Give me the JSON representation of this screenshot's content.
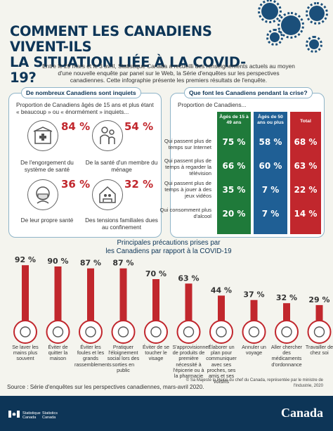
{
  "title_lines": [
    "COMMENT LES CANADIENS VIVENT-ILS",
    "LA SITUATION LIÉE À LA COVID-19?"
  ],
  "intro": "Entre le 29 mars et le 3 avril, Statistique Canada a recueilli des renseignements actuels au moyen d'une nouvelle enquête par panel sur le Web, la Série d'enquêtes sur les perspectives canadiennes. Cette infographie présente les premiers résultats de l'enquête.",
  "colors": {
    "navy": "#0d3557",
    "red": "#c1272d",
    "green": "#1f7a3a",
    "blue": "#1f5f95"
  },
  "left_panel": {
    "tag": "De nombreux Canadiens sont inquiets",
    "intro": "Proportion de Canadiens âgés de 15 ans et plus étant « beaucoup » ou « énormément » inquiets...",
    "stats": [
      {
        "pct": "84 %",
        "label": "De l'engorgement du système de santé",
        "icon": "hospital-icon"
      },
      {
        "pct": "54 %",
        "label": "De la santé d'un membre du ménage",
        "icon": "family-icon"
      },
      {
        "pct": "36 %",
        "label": "De leur propre santé",
        "icon": "masked-person-icon"
      },
      {
        "pct": "32 %",
        "label": "Des tensions familiales dues au confinement",
        "icon": "home-tension-icon"
      }
    ]
  },
  "right_panel": {
    "tag": "Que font les Canadiens pendant la crise?",
    "intro": "Proportion de Canadiens...",
    "columns": [
      "Âgés de 15 à 49 ans",
      "Âgés de 50 ans ou plus",
      "Total"
    ],
    "rows": [
      {
        "label": "Qui passent plus de temps sur Internet",
        "values": [
          "75 %",
          "58 %",
          "68 %"
        ]
      },
      {
        "label": "Qui passent plus de temps à regarder la télévision",
        "values": [
          "66 %",
          "60 %",
          "63 %"
        ]
      },
      {
        "label": "Qui passent plus de temps à jouer à des jeux vidéos",
        "values": [
          "35 %",
          "7 %",
          "22 %"
        ]
      },
      {
        "label": "Qui consomment plus d'alcool",
        "values": [
          "20 %",
          "7 %",
          "14 %"
        ]
      }
    ]
  },
  "chart_title_lines": [
    "Principales précautions prises par",
    "les Canadiens par rapport à la COVID-19"
  ],
  "chart_data": {
    "type": "bar",
    "title": "Principales précautions prises par les Canadiens par rapport à la COVID-19",
    "categories": [
      "Se laver les mains plus souvent",
      "Éviter de quitter la maison",
      "Éviter les foules et les grands rassemblements",
      "Pratiquer l'éloignement social lors des sorties en public",
      "Éviter de se toucher le visage",
      "S'approvisionner de produits de première nécessité à l'épicerie ou à la pharmacie",
      "Élaborer un plan pour communiquer avec ses proches, ses amis et ses voisins",
      "Annuler un voyage",
      "Aller chercher des médicaments d'ordonnance",
      "Travailler de chez soi"
    ],
    "values": [
      92,
      90,
      87,
      87,
      70,
      63,
      44,
      37,
      32,
      29
    ],
    "value_labels": [
      "92 %",
      "90 %",
      "87 %",
      "87 %",
      "70 %",
      "63 %",
      "44 %",
      "37 %",
      "32 %",
      "29 %"
    ],
    "icons": [
      "handwash-icon",
      "house-icon",
      "crowd-icon",
      "distance-icon",
      "no-face-touch-icon",
      "grocery-icon",
      "phone-icon",
      "luggage-icon",
      "pill-icon",
      "laptop-icon"
    ],
    "ylim": [
      0,
      100
    ]
  },
  "source": "Source : Série d'enquêtes sur les perspectives canadiennes, mars-avril 2020.",
  "copyright": "© Sa Majesté la Reine du chef du Canada, représentée par le ministre de l'Industrie, 2020",
  "footer": {
    "org_fr": [
      "Statistique",
      "Canada"
    ],
    "org_en": [
      "Statistics",
      "Canada"
    ],
    "wordmark": "Canada"
  }
}
